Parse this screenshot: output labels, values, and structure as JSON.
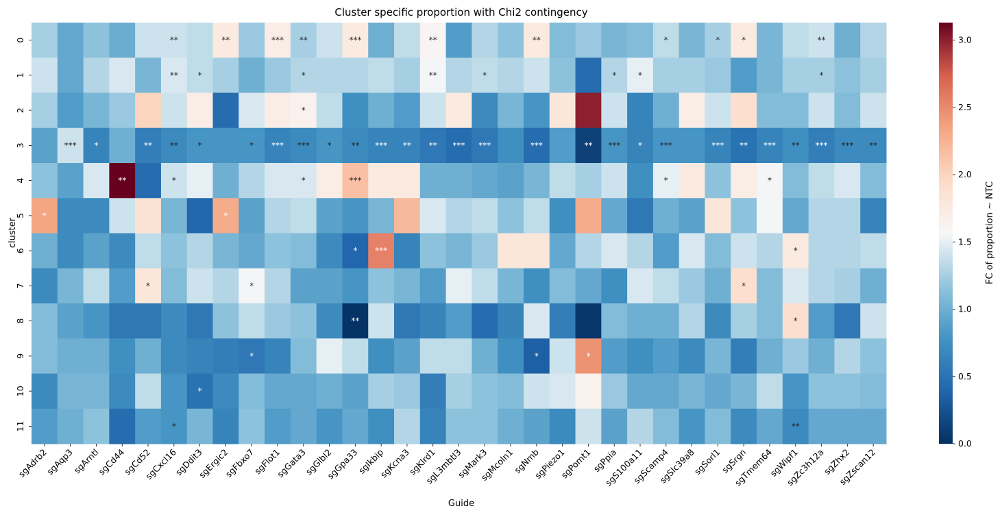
{
  "chart_data": {
    "type": "heatmap",
    "title": "Cluster specific proportion with Chi2 contingency",
    "xlabel": "Guide",
    "ylabel": "cluster",
    "colorbar_label": "FC of proportion ~ NTC",
    "colormap": "RdBu_r",
    "vmin": 0,
    "vmax": 3.13,
    "colorbar_ticks": [
      "0.0",
      "0.5",
      "1.0",
      "1.5",
      "2.0",
      "2.5",
      "3.0"
    ],
    "colorbar_tick_values": [
      0,
      0.5,
      1.0,
      1.5,
      2.0,
      2.5,
      3.0
    ],
    "x_categories": [
      "sgAdrb2",
      "sgAqp3",
      "sgArntl",
      "sgCd44",
      "sgCd52",
      "sgCxcl16",
      "sgDdit3",
      "sgErgic2",
      "sgFbxo7",
      "sgFlot1",
      "sgGata3",
      "sgGlbl2",
      "sgGpa33",
      "sgIkbip",
      "sgKcna3",
      "sgKlrd1",
      "sgL3mbtl3",
      "sgMark3",
      "sgMcoln1",
      "sgNmb",
      "sgPiezo1",
      "sgPomt1",
      "sgPpia",
      "sgS100a11",
      "sgScamp4",
      "sgSlc39a8",
      "sgSorl1",
      "sgSrgn",
      "sgTmem64",
      "sgWipf1",
      "sgZc3h12a",
      "sgZhx2",
      "sgZscan12"
    ],
    "y_categories": [
      "0",
      "1",
      "2",
      "3",
      "4",
      "5",
      "6",
      "7",
      "8",
      "9",
      "10",
      "11"
    ],
    "values": [
      [
        1.25,
        0.95,
        1.15,
        0.98,
        1.4,
        1.4,
        1.35,
        1.75,
        1.2,
        1.7,
        1.25,
        1.4,
        1.75,
        1.0,
        1.35,
        1.6,
        0.85,
        1.3,
        1.15,
        1.75,
        1.1,
        1.2,
        1.05,
        1.1,
        1.35,
        1.05,
        1.25,
        1.75,
        1.05,
        1.35,
        1.4,
        1.0,
        1.3
      ],
      [
        1.4,
        0.95,
        1.3,
        1.45,
        1.05,
        1.45,
        1.35,
        1.25,
        1.0,
        1.2,
        1.3,
        1.3,
        1.3,
        1.35,
        1.25,
        1.55,
        1.3,
        1.35,
        1.3,
        1.4,
        1.15,
        0.45,
        1.3,
        1.5,
        1.25,
        1.25,
        1.2,
        0.85,
        1.05,
        1.25,
        1.25,
        1.15,
        1.25
      ],
      [
        1.25,
        0.85,
        1.05,
        1.2,
        2.0,
        1.4,
        1.7,
        0.45,
        1.45,
        1.7,
        1.65,
        1.35,
        0.75,
        1.0,
        0.85,
        1.4,
        1.75,
        0.7,
        1.05,
        0.8,
        1.8,
        3.0,
        1.4,
        0.65,
        1.0,
        1.7,
        1.4,
        1.9,
        1.1,
        1.1,
        1.4,
        1.1,
        1.4
      ],
      [
        0.9,
        1.4,
        0.65,
        1.0,
        0.6,
        0.7,
        0.8,
        0.8,
        0.8,
        0.65,
        0.7,
        0.8,
        0.7,
        0.65,
        0.65,
        0.55,
        0.45,
        0.55,
        0.75,
        0.45,
        0.85,
        0.12,
        0.8,
        0.65,
        0.8,
        0.8,
        0.65,
        0.5,
        0.65,
        0.75,
        0.6,
        0.7,
        0.7
      ],
      [
        1.15,
        0.9,
        1.45,
        3.13,
        0.45,
        1.4,
        1.5,
        1.0,
        1.3,
        1.45,
        1.45,
        1.7,
        2.15,
        1.75,
        1.75,
        1.0,
        1.0,
        0.95,
        0.9,
        1.05,
        1.35,
        1.25,
        1.4,
        0.75,
        1.5,
        1.75,
        1.15,
        1.7,
        1.55,
        1.1,
        1.35,
        1.45,
        1.1
      ],
      [
        2.35,
        0.7,
        0.7,
        1.4,
        1.85,
        1.05,
        0.4,
        2.3,
        0.9,
        1.3,
        1.35,
        0.9,
        0.8,
        1.05,
        2.2,
        1.45,
        1.3,
        1.35,
        1.15,
        1.35,
        0.75,
        2.3,
        0.95,
        0.55,
        1.0,
        0.9,
        1.8,
        1.15,
        1.55,
        0.95,
        1.3,
        1.3,
        0.65
      ],
      [
        1.0,
        0.7,
        0.9,
        0.7,
        1.35,
        1.15,
        1.3,
        1.05,
        0.95,
        1.15,
        1.1,
        0.7,
        0.4,
        2.55,
        0.65,
        1.15,
        1.05,
        1.2,
        1.8,
        1.8,
        0.95,
        1.3,
        1.45,
        1.3,
        0.85,
        1.45,
        1.1,
        1.4,
        1.3,
        1.75,
        1.3,
        1.3,
        1.35
      ],
      [
        0.7,
        1.05,
        1.35,
        0.85,
        1.8,
        1.1,
        1.4,
        1.3,
        1.55,
        1.3,
        0.9,
        0.9,
        0.8,
        1.15,
        1.05,
        0.85,
        1.5,
        1.35,
        1.05,
        0.75,
        1.1,
        0.95,
        0.75,
        1.45,
        1.35,
        1.2,
        1.0,
        1.9,
        1.1,
        1.45,
        1.3,
        1.25,
        1.0
      ],
      [
        1.1,
        0.9,
        0.8,
        0.55,
        0.55,
        0.7,
        0.55,
        1.15,
        1.35,
        1.2,
        1.15,
        0.7,
        0.02,
        1.4,
        0.55,
        0.65,
        0.85,
        0.45,
        0.65,
        1.45,
        0.6,
        0.05,
        1.1,
        1.0,
        1.0,
        1.3,
        0.7,
        1.25,
        1.1,
        1.9,
        0.85,
        0.55,
        1.4
      ],
      [
        1.1,
        1.0,
        1.0,
        0.75,
        1.0,
        0.7,
        0.65,
        0.6,
        0.55,
        0.65,
        1.1,
        1.5,
        1.35,
        0.75,
        0.9,
        1.35,
        1.35,
        1.0,
        0.75,
        0.35,
        1.4,
        2.45,
        0.85,
        0.75,
        0.85,
        0.7,
        1.05,
        0.6,
        1.0,
        1.2,
        1.0,
        1.3,
        1.15
      ],
      [
        0.7,
        1.05,
        1.05,
        0.7,
        1.35,
        0.8,
        0.5,
        0.7,
        1.1,
        0.95,
        0.95,
        1.0,
        0.9,
        1.25,
        1.2,
        0.6,
        1.25,
        1.15,
        1.1,
        1.4,
        1.45,
        1.65,
        1.2,
        0.95,
        0.95,
        1.05,
        0.95,
        1.05,
        1.35,
        0.8,
        1.15,
        1.15,
        1.1
      ],
      [
        0.85,
        1.0,
        1.15,
        0.45,
        0.85,
        0.8,
        1.05,
        0.65,
        1.15,
        0.85,
        0.95,
        0.8,
        0.95,
        0.75,
        1.3,
        0.65,
        1.15,
        1.15,
        1.0,
        0.9,
        0.7,
        1.4,
        0.9,
        1.3,
        1.1,
        0.8,
        1.1,
        0.7,
        0.95,
        0.7,
        0.95,
        0.95,
        0.95
      ]
    ],
    "annotations": [
      [
        null,
        null,
        null,
        null,
        null,
        "**",
        null,
        "**",
        null,
        "***",
        "**",
        null,
        "***",
        null,
        null,
        "**",
        null,
        null,
        null,
        "**",
        null,
        null,
        null,
        null,
        "*",
        null,
        "*",
        "*",
        null,
        null,
        "**",
        null,
        null
      ],
      [
        null,
        null,
        null,
        null,
        null,
        "**",
        "*",
        null,
        null,
        null,
        "*",
        null,
        null,
        null,
        null,
        "**",
        null,
        "*",
        null,
        null,
        null,
        null,
        "*",
        "*",
        null,
        null,
        null,
        null,
        null,
        null,
        "*",
        null,
        null
      ],
      [
        null,
        null,
        null,
        null,
        null,
        null,
        null,
        null,
        null,
        null,
        "*",
        null,
        null,
        null,
        null,
        null,
        null,
        null,
        null,
        null,
        null,
        null,
        null,
        null,
        null,
        null,
        null,
        null,
        null,
        null,
        null,
        null,
        null
      ],
      [
        null,
        "***",
        "*",
        null,
        "**",
        "**",
        "*",
        null,
        "*",
        "***",
        "***",
        "*",
        "**",
        "***",
        "**",
        "**",
        "***",
        "***",
        null,
        "***",
        null,
        "**",
        "***",
        "*",
        "***",
        null,
        "***",
        "**",
        "***",
        "**",
        "***",
        "***",
        "**"
      ],
      [
        null,
        null,
        null,
        "**",
        null,
        "*",
        null,
        null,
        null,
        null,
        "*",
        null,
        "***",
        null,
        null,
        null,
        null,
        null,
        null,
        null,
        null,
        null,
        null,
        null,
        "*",
        null,
        null,
        null,
        "*",
        null,
        null,
        null,
        null
      ],
      [
        "*",
        null,
        null,
        null,
        null,
        null,
        null,
        "*",
        null,
        null,
        null,
        null,
        null,
        null,
        null,
        null,
        null,
        null,
        null,
        null,
        null,
        null,
        null,
        null,
        null,
        null,
        null,
        null,
        null,
        null,
        null,
        null,
        null
      ],
      [
        null,
        null,
        null,
        null,
        null,
        null,
        null,
        null,
        null,
        null,
        null,
        null,
        "*",
        "***",
        null,
        null,
        null,
        null,
        null,
        null,
        null,
        null,
        null,
        null,
        null,
        null,
        null,
        null,
        null,
        "*",
        null,
        null,
        null
      ],
      [
        null,
        null,
        null,
        null,
        "*",
        null,
        null,
        null,
        "*",
        null,
        null,
        null,
        null,
        null,
        null,
        null,
        null,
        null,
        null,
        null,
        null,
        null,
        null,
        null,
        null,
        null,
        null,
        "*",
        null,
        null,
        null,
        null,
        null
      ],
      [
        null,
        null,
        null,
        null,
        null,
        null,
        null,
        null,
        null,
        null,
        null,
        null,
        "**",
        null,
        null,
        null,
        null,
        null,
        null,
        null,
        null,
        null,
        null,
        null,
        null,
        null,
        null,
        null,
        null,
        "*",
        null,
        null,
        null
      ],
      [
        null,
        null,
        null,
        null,
        null,
        null,
        null,
        null,
        "*",
        null,
        null,
        null,
        null,
        null,
        null,
        null,
        null,
        null,
        null,
        "*",
        null,
        "*",
        null,
        null,
        null,
        null,
        null,
        null,
        null,
        null,
        null,
        null,
        null
      ],
      [
        null,
        null,
        null,
        null,
        null,
        null,
        "*",
        null,
        null,
        null,
        null,
        null,
        null,
        null,
        null,
        null,
        null,
        null,
        null,
        null,
        null,
        null,
        null,
        null,
        null,
        null,
        null,
        null,
        null,
        null,
        null,
        null,
        null
      ],
      [
        null,
        null,
        null,
        null,
        null,
        "*",
        null,
        null,
        null,
        null,
        null,
        null,
        null,
        null,
        null,
        null,
        null,
        null,
        null,
        null,
        null,
        null,
        null,
        null,
        null,
        null,
        null,
        null,
        null,
        "**",
        null,
        null,
        null
      ]
    ]
  }
}
